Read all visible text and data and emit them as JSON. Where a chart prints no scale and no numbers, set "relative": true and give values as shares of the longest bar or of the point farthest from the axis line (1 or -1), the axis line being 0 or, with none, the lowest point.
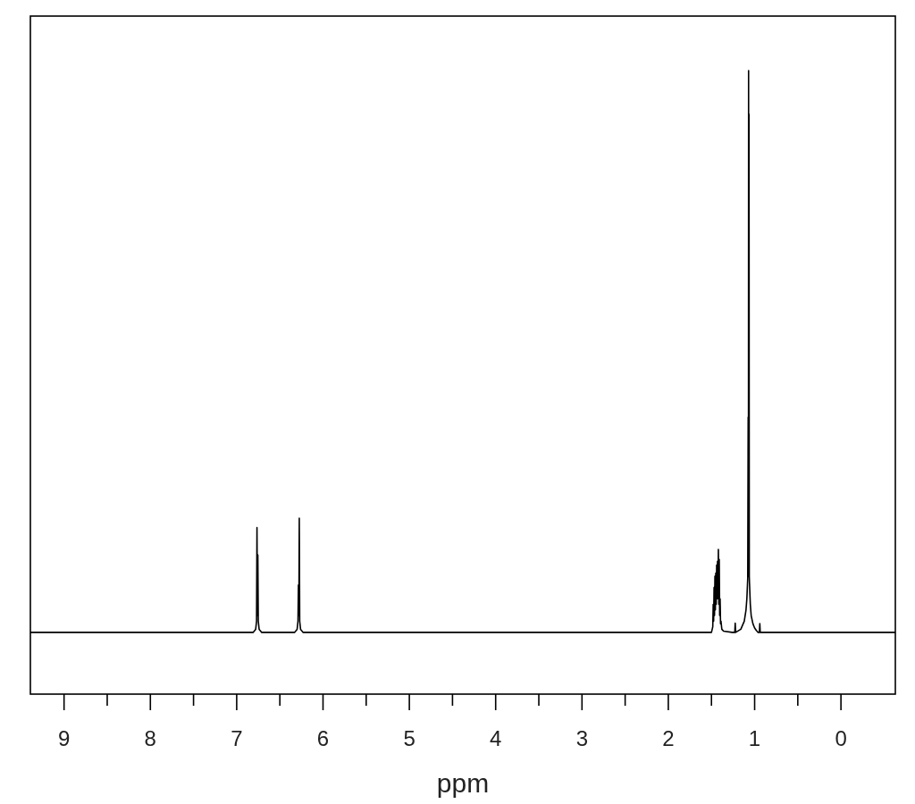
{
  "chart_data": {
    "type": "line",
    "relative": true,
    "xlabel": "ppm",
    "tick_labels": "x",
    "xlim": [
      9.39,
      -0.63
    ],
    "xticks": [
      9,
      {
        "value": 8.5,
        "label": null
      },
      8,
      {
        "value": 7.5,
        "label": null
      },
      7,
      {
        "value": 6.5,
        "label": null
      },
      6,
      {
        "value": 5.5,
        "label": null
      },
      5,
      {
        "value": 4.5,
        "label": null
      },
      4,
      {
        "value": 3.5,
        "label": null
      },
      3,
      {
        "value": 2.5,
        "label": null
      },
      2,
      {
        "value": 1.5,
        "label": null
      },
      1,
      {
        "value": 0.5,
        "label": null
      },
      0
    ],
    "x": [
      9.39,
      6.81,
      6.78,
      6.77,
      6.765,
      6.76,
      6.755,
      6.75,
      6.74,
      6.71,
      6.33,
      6.3,
      6.29,
      6.285,
      6.28,
      6.275,
      6.27,
      6.26,
      6.23,
      1.5,
      1.485,
      1.48,
      1.475,
      1.47,
      1.465,
      1.46,
      1.455,
      1.45,
      1.445,
      1.44,
      1.435,
      1.43,
      1.425,
      1.42,
      1.415,
      1.41,
      1.405,
      1.4,
      1.395,
      1.39,
      1.38,
      1.36,
      1.26,
      1.23,
      1.225,
      1.22,
      1.16,
      1.12,
      1.1,
      1.09,
      1.08,
      1.075,
      1.072,
      1.07,
      1.068,
      1.065,
      1.062,
      1.06,
      1.05,
      1.04,
      1.02,
      1.0,
      0.98,
      0.96,
      0.945,
      0.94,
      0.935,
      0.93,
      -0.63
    ],
    "series": [
      {
        "color": "#000000",
        "values": [
          0.099,
          0.099,
          0.104,
          0.117,
          0.267,
          0.126,
          0.223,
          0.117,
          0.104,
          0.099,
          0.099,
          0.104,
          0.117,
          0.175,
          0.126,
          0.282,
          0.117,
          0.104,
          0.099,
          0.099,
          0.108,
          0.144,
          0.117,
          0.171,
          0.126,
          0.189,
          0.135,
          0.194,
          0.144,
          0.207,
          0.153,
          0.213,
          0.153,
          0.232,
          0.144,
          0.216,
          0.126,
          0.153,
          0.113,
          0.117,
          0.104,
          0.101,
          0.099,
          0.099,
          0.114,
          0.099,
          0.104,
          0.117,
          0.135,
          0.153,
          0.186,
          0.444,
          0.189,
          1.0,
          0.207,
          0.93,
          0.189,
          0.18,
          0.144,
          0.126,
          0.113,
          0.106,
          0.102,
          0.099,
          0.099,
          0.113,
          0.099,
          0.099,
          0.099
        ]
      }
    ]
  }
}
